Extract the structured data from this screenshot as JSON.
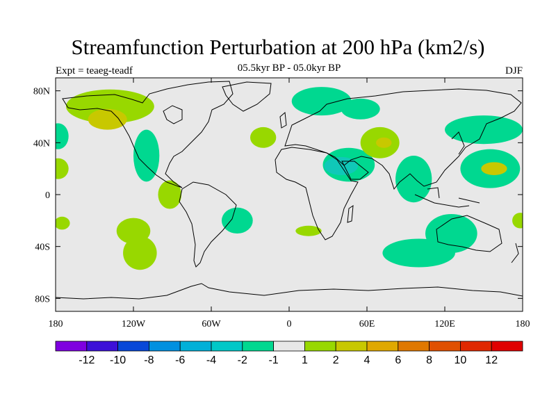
{
  "title": "Streamfunction Perturbation at 200 hPa (km2/s)",
  "left_label": "Expt = teaeg-teadf",
  "center_label": "05.5kyr BP - 05.0kyr BP",
  "right_label": "DJF",
  "colors": {
    "background": "#e8e8e8",
    "neg1": "#00d890",
    "neg2": "#10c8b8",
    "pos1": "#98d800",
    "pos2": "#c8c800"
  },
  "chart_data": {
    "type": "map",
    "projection": "cylindrical-equidistant",
    "xlim": [
      -180,
      180
    ],
    "ylim": [
      -90,
      90
    ],
    "x_ticks": [
      {
        "value": -180,
        "label": "180"
      },
      {
        "value": -120,
        "label": "120W"
      },
      {
        "value": -60,
        "label": "60W"
      },
      {
        "value": 0,
        "label": "0"
      },
      {
        "value": 60,
        "label": "60E"
      },
      {
        "value": 120,
        "label": "120E"
      },
      {
        "value": 180,
        "label": "180"
      }
    ],
    "y_ticks": [
      {
        "value": 80,
        "label": "80N"
      },
      {
        "value": 40,
        "label": "40N"
      },
      {
        "value": 0,
        "label": "0"
      },
      {
        "value": -40,
        "label": "40S"
      },
      {
        "value": -80,
        "label": "80S"
      }
    ],
    "colorbar": {
      "colors": [
        "#7f00e0",
        "#3d10d8",
        "#0848d8",
        "#0090e0",
        "#00b0d8",
        "#00c8c8",
        "#00d890",
        "#e8e8e8",
        "#98d800",
        "#c8c800",
        "#e0a800",
        "#e07800",
        "#e05000",
        "#e02800",
        "#e00000"
      ],
      "labels": [
        "-12",
        "-10",
        "-8",
        "-6",
        "-4",
        "-2",
        "-1",
        "1",
        "2",
        "4",
        "6",
        "8",
        "10",
        "12"
      ]
    },
    "anomaly_regions": [
      {
        "lon": -138,
        "lat": 68,
        "rx": 34,
        "ry": 13,
        "level": 1
      },
      {
        "lon": -140,
        "lat": 58,
        "rx": 15,
        "ry": 8,
        "level": 2
      },
      {
        "lon": -178,
        "lat": 45,
        "rx": 8,
        "ry": 10,
        "level": -1
      },
      {
        "lon": -178,
        "lat": 20,
        "rx": 8,
        "ry": 8,
        "level": 1
      },
      {
        "lon": -110,
        "lat": 30,
        "rx": 10,
        "ry": 20,
        "level": -1
      },
      {
        "lon": -92,
        "lat": 0,
        "rx": 9,
        "ry": 11,
        "level": 1
      },
      {
        "lon": -120,
        "lat": -28,
        "rx": 13,
        "ry": 10,
        "level": 1
      },
      {
        "lon": -115,
        "lat": -45,
        "rx": 13,
        "ry": 13,
        "level": 1
      },
      {
        "lon": -175,
        "lat": -22,
        "rx": 6,
        "ry": 5,
        "level": 1
      },
      {
        "lon": -40,
        "lat": -20,
        "rx": 12,
        "ry": 10,
        "level": -1
      },
      {
        "lon": -20,
        "lat": 44,
        "rx": 10,
        "ry": 8,
        "level": 1
      },
      {
        "lon": 25,
        "lat": 72,
        "rx": 23,
        "ry": 11,
        "level": -1
      },
      {
        "lon": 55,
        "lat": 66,
        "rx": 15,
        "ry": 8,
        "level": -1
      },
      {
        "lon": 46,
        "lat": 23,
        "rx": 20,
        "ry": 13,
        "level": -1
      },
      {
        "lon": 40,
        "lat": 22,
        "rx": 13,
        "ry": 7,
        "level": -2
      },
      {
        "lon": 70,
        "lat": 40,
        "rx": 15,
        "ry": 12,
        "level": 1
      },
      {
        "lon": 73,
        "lat": 40,
        "rx": 6,
        "ry": 4,
        "level": 2
      },
      {
        "lon": 96,
        "lat": 12,
        "rx": 14,
        "ry": 18,
        "level": -1
      },
      {
        "lon": 150,
        "lat": 50,
        "rx": 30,
        "ry": 11,
        "level": -1
      },
      {
        "lon": 155,
        "lat": 20,
        "rx": 23,
        "ry": 15,
        "level": -1
      },
      {
        "lon": 158,
        "lat": 20,
        "rx": 10,
        "ry": 5,
        "level": 2
      },
      {
        "lon": 15,
        "lat": -28,
        "rx": 10,
        "ry": 4,
        "level": 1
      },
      {
        "lon": 100,
        "lat": -45,
        "rx": 28,
        "ry": 11,
        "level": -1
      },
      {
        "lon": 125,
        "lat": -30,
        "rx": 20,
        "ry": 15,
        "level": -1
      },
      {
        "lon": 178,
        "lat": -20,
        "rx": 6,
        "ry": 6,
        "level": 1
      }
    ]
  }
}
